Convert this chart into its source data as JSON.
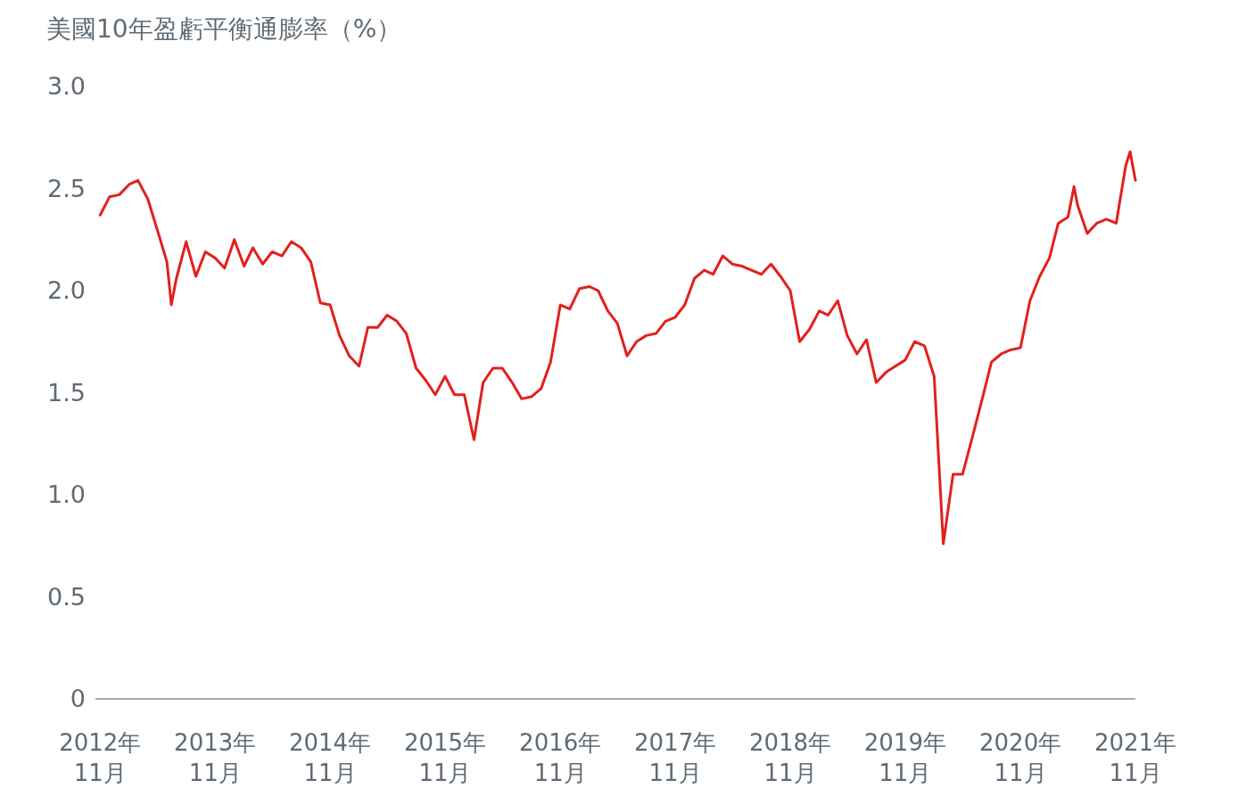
{
  "chart_data": {
    "type": "line",
    "title": "美國10年盈虧平衡通膨率（%）",
    "x": [
      "2012-11-01",
      "2012-12-01",
      "2013-01-01",
      "2013-02-01",
      "2013-03-01",
      "2013-04-01",
      "2013-05-01",
      "2013-06-01",
      "2013-06-15",
      "2013-07-01",
      "2013-08-01",
      "2013-09-01",
      "2013-10-01",
      "2013-11-01",
      "2013-12-01",
      "2014-01-01",
      "2014-02-01",
      "2014-03-01",
      "2014-04-01",
      "2014-05-01",
      "2014-06-01",
      "2014-07-01",
      "2014-08-01",
      "2014-09-01",
      "2014-10-01",
      "2014-11-01",
      "2014-12-01",
      "2015-01-01",
      "2015-02-01",
      "2015-03-01",
      "2015-04-01",
      "2015-05-01",
      "2015-06-01",
      "2015-07-01",
      "2015-08-01",
      "2015-09-01",
      "2015-10-01",
      "2015-11-01",
      "2015-12-01",
      "2016-01-01",
      "2016-02-01",
      "2016-03-01",
      "2016-04-01",
      "2016-05-01",
      "2016-06-01",
      "2016-07-01",
      "2016-08-01",
      "2016-09-01",
      "2016-10-01",
      "2016-11-01",
      "2016-12-01",
      "2017-01-01",
      "2017-02-01",
      "2017-03-01",
      "2017-04-01",
      "2017-05-01",
      "2017-06-01",
      "2017-07-01",
      "2017-08-01",
      "2017-09-01",
      "2017-10-01",
      "2017-11-01",
      "2017-12-01",
      "2018-01-01",
      "2018-02-01",
      "2018-03-01",
      "2018-04-01",
      "2018-05-01",
      "2018-06-01",
      "2018-07-01",
      "2018-08-01",
      "2018-09-01",
      "2018-10-01",
      "2018-11-01",
      "2018-12-01",
      "2019-01-01",
      "2019-02-01",
      "2019-03-01",
      "2019-04-01",
      "2019-05-01",
      "2019-06-01",
      "2019-07-01",
      "2019-08-01",
      "2019-09-01",
      "2019-10-01",
      "2019-11-01",
      "2019-12-01",
      "2020-01-01",
      "2020-02-01",
      "2020-03-01",
      "2020-04-01",
      "2020-05-01",
      "2020-06-01",
      "2020-07-01",
      "2020-08-01",
      "2020-09-01",
      "2020-10-01",
      "2020-11-01",
      "2020-12-01",
      "2021-01-01",
      "2021-02-01",
      "2021-03-01",
      "2021-04-01",
      "2021-04-20",
      "2021-05-01",
      "2021-06-01",
      "2021-07-01",
      "2021-08-01",
      "2021-09-01",
      "2021-10-01",
      "2021-10-15",
      "2021-11-01"
    ],
    "series": [
      {
        "color": "#e2201c",
        "values": [
          2.37,
          2.46,
          2.47,
          2.52,
          2.54,
          2.45,
          2.3,
          2.14,
          1.93,
          2.06,
          2.24,
          2.07,
          2.19,
          2.16,
          2.11,
          2.25,
          2.12,
          2.21,
          2.13,
          2.19,
          2.17,
          2.24,
          2.21,
          2.14,
          1.94,
          1.93,
          1.78,
          1.68,
          1.63,
          1.82,
          1.82,
          1.88,
          1.85,
          1.79,
          1.62,
          1.56,
          1.49,
          1.58,
          1.49,
          1.49,
          1.27,
          1.55,
          1.62,
          1.62,
          1.55,
          1.47,
          1.48,
          1.52,
          1.65,
          1.93,
          1.91,
          2.01,
          2.02,
          2.0,
          1.9,
          1.84,
          1.68,
          1.75,
          1.78,
          1.79,
          1.85,
          1.87,
          1.93,
          2.06,
          2.1,
          2.08,
          2.17,
          2.13,
          2.12,
          2.1,
          2.08,
          2.13,
          2.07,
          2.0,
          1.75,
          1.81,
          1.9,
          1.88,
          1.95,
          1.78,
          1.69,
          1.76,
          1.55,
          1.6,
          1.63,
          1.66,
          1.75,
          1.73,
          1.58,
          0.76,
          1.1,
          1.1,
          1.28,
          1.46,
          1.65,
          1.69,
          1.71,
          1.72,
          1.95,
          2.07,
          2.16,
          2.33,
          2.36,
          2.51,
          2.42,
          2.28,
          2.33,
          2.35,
          2.33,
          2.61,
          2.68,
          2.54
        ]
      }
    ],
    "xlim": [
      "2012-10-17",
      "2021-11-01"
    ],
    "xticks": [
      {
        "value": "2012-11-01",
        "label": "2012年\n11月"
      },
      {
        "value": "2013-11-01",
        "label": "2013年\n11月"
      },
      {
        "value": "2014-11-01",
        "label": "2014年\n11月"
      },
      {
        "value": "2015-11-01",
        "label": "2015年\n11月"
      },
      {
        "value": "2016-11-01",
        "label": "2016年\n11月"
      },
      {
        "value": "2017-11-01",
        "label": "2017年\n11月"
      },
      {
        "value": "2018-11-01",
        "label": "2018年\n11月"
      },
      {
        "value": "2019-11-01",
        "label": "2019年\n11月"
      },
      {
        "value": "2020-11-01",
        "label": "2020年\n11月"
      },
      {
        "value": "2021-11-01",
        "label": "2021年\n11月"
      }
    ],
    "ylim": [
      0,
      3
    ],
    "yticks": [
      0,
      0.5,
      {
        "value": 1,
        "label": "1.0"
      },
      1.5,
      {
        "value": 2,
        "label": "2.0"
      },
      2.5,
      {
        "value": 3,
        "label": "3.0"
      }
    ],
    "marker": "none",
    "line_style": "solid"
  }
}
